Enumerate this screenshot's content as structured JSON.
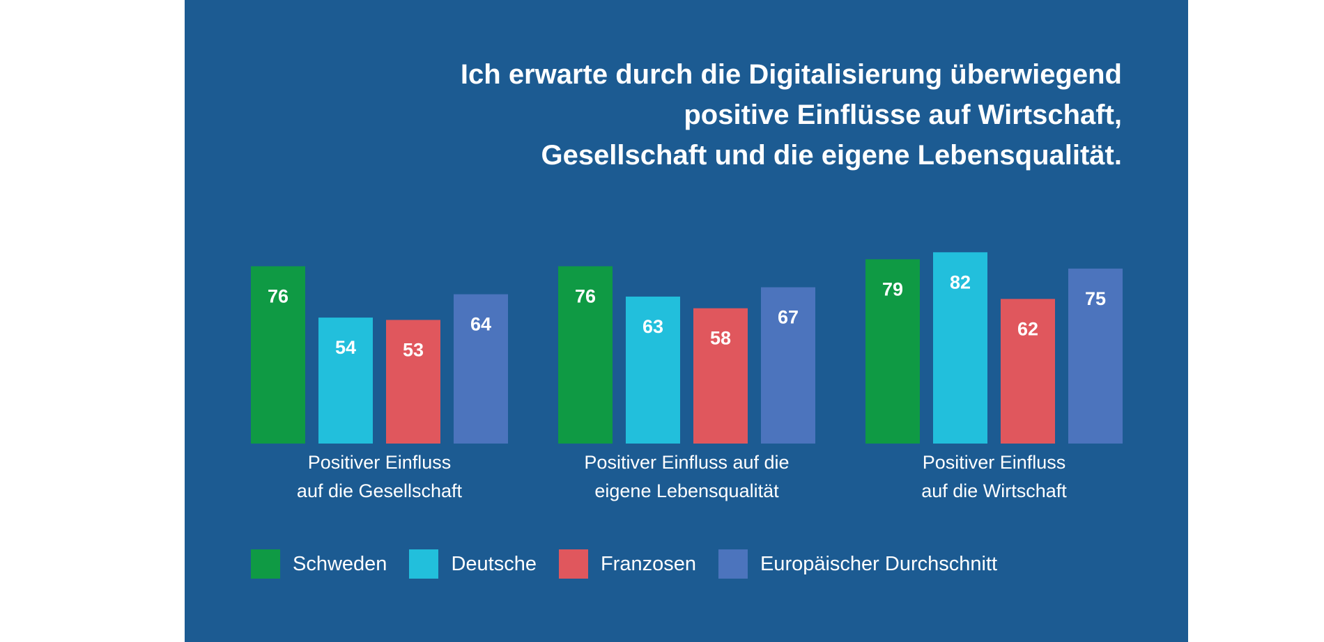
{
  "title": "Ich erwarte durch die Digitalisierung überwiegend\npositive Einflüsse auf Wirtschaft,\nGesellschaft und die eigene Lebensqualität.",
  "colors": {
    "panel_bg": "#1c5b92",
    "Schweden": "#0f9a44",
    "Deutsche": "#22bfdc",
    "Franzosen": "#e0575d",
    "Europäischer Durchschnitt": "#4c74bd"
  },
  "chart_data": {
    "type": "bar",
    "title": "Ich erwarte durch die Digitalisierung überwiegend positive Einflüsse auf Wirtschaft, Gesellschaft und die eigene Lebensqualität.",
    "categories": [
      [
        "Positiver Einfluss",
        "auf die Gesellschaft"
      ],
      [
        "Positiver Einfluss auf die",
        "eigene Lebensqualität"
      ],
      [
        "Positiver Einfluss",
        "auf die Wirtschaft"
      ]
    ],
    "series": [
      {
        "name": "Schweden",
        "color": "#0f9a44",
        "values": [
          76,
          76,
          79
        ]
      },
      {
        "name": "Deutsche",
        "color": "#22bfdc",
        "values": [
          54,
          63,
          82
        ]
      },
      {
        "name": "Franzosen",
        "color": "#e0575d",
        "values": [
          53,
          58,
          62
        ]
      },
      {
        "name": "Europäischer Durchschnitt",
        "color": "#4c74bd",
        "values": [
          64,
          67,
          75
        ]
      }
    ],
    "xlabel": "",
    "ylabel": "",
    "grid": false,
    "legend": "bottom-left",
    "data_labels": true
  }
}
